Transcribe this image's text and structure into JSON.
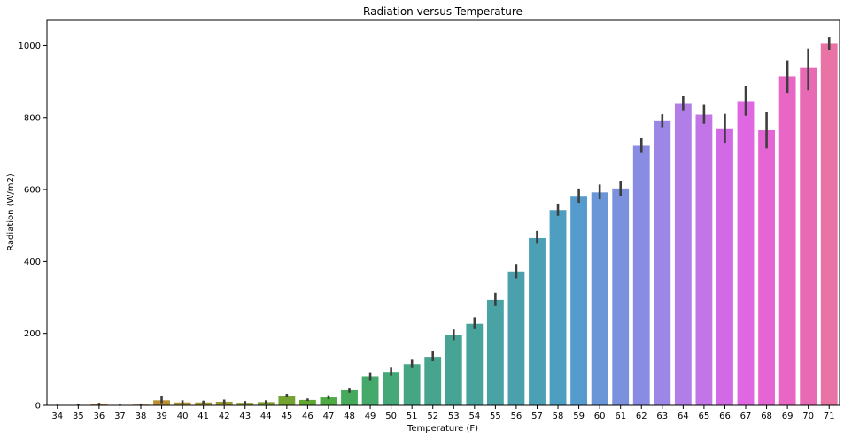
{
  "chart_data": {
    "type": "bar",
    "title": "Radiation versus Temperature",
    "xlabel": "Temperature (F)",
    "ylabel": "Radiation (W/m2)",
    "ylim": [
      0,
      1070
    ],
    "yticks": [
      0,
      200,
      400,
      600,
      800,
      1000
    ],
    "categories": [
      "34",
      "35",
      "36",
      "37",
      "38",
      "39",
      "40",
      "41",
      "42",
      "43",
      "44",
      "45",
      "46",
      "47",
      "48",
      "49",
      "50",
      "51",
      "52",
      "53",
      "54",
      "55",
      "56",
      "57",
      "58",
      "59",
      "60",
      "61",
      "62",
      "63",
      "64",
      "65",
      "66",
      "67",
      "68",
      "69",
      "70",
      "71"
    ],
    "values": [
      1,
      1,
      3,
      1,
      2,
      14,
      8,
      8,
      10,
      7,
      9,
      27,
      15,
      22,
      42,
      80,
      93,
      115,
      135,
      195,
      227,
      293,
      372,
      465,
      543,
      580,
      592,
      603,
      722,
      790,
      840,
      808,
      768,
      845,
      765,
      914,
      938,
      1005
    ],
    "error_low": [
      0,
      0,
      0,
      0,
      0,
      6,
      2,
      3,
      5,
      2,
      5,
      23,
      12,
      17,
      35,
      70,
      82,
      104,
      123,
      181,
      212,
      276,
      353,
      449,
      527,
      563,
      573,
      583,
      702,
      771,
      820,
      783,
      728,
      805,
      715,
      868,
      875,
      988
    ],
    "error_high": [
      2,
      3,
      7,
      3,
      5,
      27,
      14,
      13,
      16,
      12,
      14,
      32,
      19,
      28,
      49,
      92,
      105,
      127,
      150,
      211,
      245,
      313,
      393,
      485,
      561,
      603,
      614,
      624,
      743,
      809,
      861,
      835,
      810,
      888,
      816,
      958,
      992,
      1023
    ],
    "colors": [
      "#e9787a",
      "#e27d5a",
      "#d8823b",
      "#cd8833",
      "#c28c32",
      "#b79132",
      "#ad9432",
      "#a39733",
      "#989a32",
      "#8d9d32",
      "#81a132",
      "#73a432",
      "#60a832",
      "#4eab44",
      "#46aa5c",
      "#44a96b",
      "#44a878",
      "#45a683",
      "#46a58c",
      "#47a494",
      "#48a39c",
      "#49a2a4",
      "#4aa1ad",
      "#4ca0b6",
      "#4e9ec1",
      "#569bce",
      "#6a96d8",
      "#7b91de",
      "#8a8ce3",
      "#9c86e6",
      "#b17de7",
      "#c275e6",
      "#d269e6",
      "#e067e2",
      "#e565d5",
      "#e867c5",
      "#e96ab4",
      "#e873a4"
    ],
    "grid": false,
    "legend": "none"
  }
}
